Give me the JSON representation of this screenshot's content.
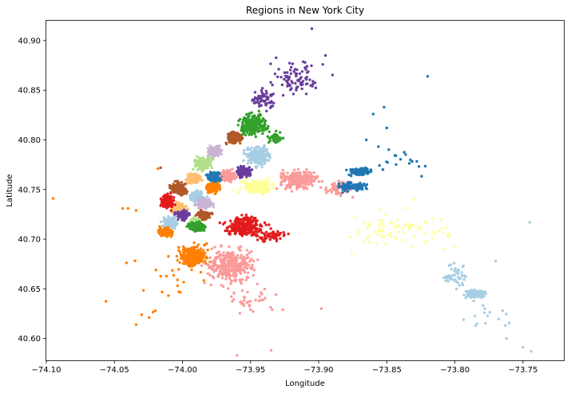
{
  "chart_data": {
    "type": "scatter",
    "title": "Regions in New York City",
    "xlabel": "Longitude",
    "ylabel": "Latitude",
    "xlim": [
      -74.1,
      -73.72
    ],
    "ylim": [
      40.578,
      40.92
    ],
    "xticks": [
      -74.1,
      -74.05,
      -74.0,
      -73.95,
      -73.9,
      -73.85,
      -73.8,
      -73.75
    ],
    "xtick_labels": [
      "−74.10",
      "−74.05",
      "−74.00",
      "−73.95",
      "−73.90",
      "−73.85",
      "−73.80",
      "−73.75"
    ],
    "yticks": [
      40.6,
      40.65,
      40.7,
      40.75,
      40.8,
      40.85,
      40.9
    ],
    "ytick_labels": [
      "40.60",
      "40.65",
      "40.70",
      "40.75",
      "40.80",
      "40.85",
      "40.90"
    ],
    "grid": false,
    "clusters": [
      {
        "color": "#6a3d9a",
        "center": [
          -73.915,
          40.86
        ],
        "spread": [
          0.022,
          0.022
        ],
        "n": 90
      },
      {
        "color": "#6a3d9a",
        "center": [
          -73.94,
          40.84
        ],
        "spread": [
          0.01,
          0.01
        ],
        "n": 60
      },
      {
        "color": "#33a02c",
        "center": [
          -73.948,
          40.815
        ],
        "spread": [
          0.012,
          0.012
        ],
        "n": 240
      },
      {
        "color": "#33a02c",
        "center": [
          -73.932,
          40.803
        ],
        "spread": [
          0.006,
          0.006
        ],
        "n": 40
      },
      {
        "color": "#b15928",
        "center": [
          -73.962,
          40.802
        ],
        "spread": [
          0.006,
          0.007
        ],
        "n": 120
      },
      {
        "color": "#cab2d6",
        "center": [
          -73.977,
          40.788
        ],
        "spread": [
          0.006,
          0.006
        ],
        "n": 140
      },
      {
        "color": "#a6cee3",
        "center": [
          -73.945,
          40.784
        ],
        "spread": [
          0.01,
          0.01
        ],
        "n": 220
      },
      {
        "color": "#b2df8a",
        "center": [
          -73.985,
          40.776
        ],
        "spread": [
          0.008,
          0.007
        ],
        "n": 160
      },
      {
        "color": "#6a3d9a",
        "center": [
          -73.955,
          40.768
        ],
        "spread": [
          0.006,
          0.006
        ],
        "n": 130
      },
      {
        "color": "#1f78b4",
        "center": [
          -73.976,
          40.762
        ],
        "spread": [
          0.006,
          0.006
        ],
        "n": 140
      },
      {
        "color": "#fdbf6f",
        "center": [
          -73.992,
          40.761
        ],
        "spread": [
          0.006,
          0.006
        ],
        "n": 140
      },
      {
        "color": "#fb9a99",
        "center": [
          -73.966,
          40.764
        ],
        "spread": [
          0.006,
          0.006
        ],
        "n": 130
      },
      {
        "color": "#b15928",
        "center": [
          -74.003,
          40.751
        ],
        "spread": [
          0.006,
          0.007
        ],
        "n": 150
      },
      {
        "color": "#ff7f00",
        "center": [
          -73.977,
          40.752
        ],
        "spread": [
          0.006,
          0.006
        ],
        "n": 120
      },
      {
        "color": "#a6cee3",
        "center": [
          -73.989,
          40.743
        ],
        "spread": [
          0.006,
          0.006
        ],
        "n": 130
      },
      {
        "color": "#cab2d6",
        "center": [
          -73.984,
          40.736
        ],
        "spread": [
          0.006,
          0.006
        ],
        "n": 130
      },
      {
        "color": "#fdbf6f",
        "center": [
          -74.003,
          40.732
        ],
        "spread": [
          0.006,
          0.006
        ],
        "n": 120
      },
      {
        "color": "#e31a1c",
        "center": [
          -74.011,
          40.738
        ],
        "spread": [
          0.005,
          0.008
        ],
        "n": 160
      },
      {
        "color": "#6a3d9a",
        "center": [
          -74.0,
          40.724
        ],
        "spread": [
          0.005,
          0.005
        ],
        "n": 110
      },
      {
        "color": "#b15928",
        "center": [
          -73.984,
          40.724
        ],
        "spread": [
          0.006,
          0.005
        ],
        "n": 120
      },
      {
        "color": "#b2df8a",
        "center": [
          -73.991,
          40.717
        ],
        "spread": [
          0.005,
          0.005
        ],
        "n": 100
      },
      {
        "color": "#33a02c",
        "center": [
          -73.99,
          40.713
        ],
        "spread": [
          0.007,
          0.005
        ],
        "n": 100
      },
      {
        "color": "#a6cee3",
        "center": [
          -74.009,
          40.717
        ],
        "spread": [
          0.006,
          0.006
        ],
        "n": 120
      },
      {
        "color": "#ff7f00",
        "center": [
          -74.013,
          40.707
        ],
        "spread": [
          0.006,
          0.005
        ],
        "n": 150
      },
      {
        "color": "#ff7f00",
        "center": [
          -73.992,
          40.683
        ],
        "spread": [
          0.01,
          0.012
        ],
        "n": 220
      },
      {
        "color": "#ff7f00",
        "center": [
          -74.02,
          40.66
        ],
        "spread": [
          0.04,
          0.04
        ],
        "n": 25
      },
      {
        "color": "#fb9a99",
        "center": [
          -73.965,
          40.674
        ],
        "spread": [
          0.018,
          0.018
        ],
        "n": 320
      },
      {
        "color": "#fb9a99",
        "center": [
          -73.95,
          40.64
        ],
        "spread": [
          0.02,
          0.02
        ],
        "n": 40
      },
      {
        "color": "#e31a1c",
        "center": [
          -73.955,
          40.713
        ],
        "spread": [
          0.014,
          0.01
        ],
        "n": 260
      },
      {
        "color": "#e31a1c",
        "center": [
          -73.935,
          40.703
        ],
        "spread": [
          0.012,
          0.006
        ],
        "n": 60
      },
      {
        "color": "#ffff99",
        "center": [
          -73.945,
          40.752
        ],
        "spread": [
          0.014,
          0.008
        ],
        "n": 180
      },
      {
        "color": "#ffff99",
        "center": [
          -73.84,
          40.71
        ],
        "spread": [
          0.04,
          0.02
        ],
        "n": 80
      },
      {
        "color": "#fb9a99",
        "center": [
          -73.915,
          40.76
        ],
        "spread": [
          0.014,
          0.01
        ],
        "n": 240
      },
      {
        "color": "#fb9a99",
        "center": [
          -73.885,
          40.752
        ],
        "spread": [
          0.012,
          0.008
        ],
        "n": 80
      },
      {
        "color": "#1f78b4",
        "center": [
          -73.87,
          40.768
        ],
        "spread": [
          0.009,
          0.004
        ],
        "n": 110
      },
      {
        "color": "#1f78b4",
        "center": [
          -73.875,
          40.753
        ],
        "spread": [
          0.012,
          0.005
        ],
        "n": 90
      },
      {
        "color": "#1f78b4",
        "center": [
          -73.84,
          40.78
        ],
        "spread": [
          0.03,
          0.02
        ],
        "n": 20
      },
      {
        "color": "#a6cee3",
        "center": [
          -73.785,
          40.645
        ],
        "spread": [
          0.008,
          0.004
        ],
        "n": 170
      },
      {
        "color": "#a6cee3",
        "center": [
          -73.8,
          40.662
        ],
        "spread": [
          0.01,
          0.012
        ],
        "n": 50
      },
      {
        "color": "#a6cee3",
        "center": [
          -73.775,
          40.625
        ],
        "spread": [
          0.02,
          0.02
        ],
        "n": 15
      }
    ],
    "outliers": [
      {
        "color": "#ff7f00",
        "points": [
          [
            -74.095,
            40.741
          ],
          [
            -74.044,
            40.731
          ],
          [
            -74.04,
            40.731
          ],
          [
            -74.034,
            40.729
          ],
          [
            -74.018,
            40.771
          ],
          [
            -74.03,
            40.624
          ],
          [
            -74.034,
            40.614
          ],
          [
            -74.02,
            40.628
          ]
        ]
      },
      {
        "color": "#b15928",
        "points": [
          [
            -74.016,
            40.772
          ]
        ]
      },
      {
        "color": "#6a3d9a",
        "points": [
          [
            -73.905,
            40.912
          ],
          [
            -73.895,
            40.885
          ],
          [
            -73.897,
            40.876
          ],
          [
            -73.91,
            40.878
          ]
        ]
      },
      {
        "color": "#1f78b4",
        "points": [
          [
            -73.82,
            40.864
          ],
          [
            -73.852,
            40.833
          ],
          [
            -73.85,
            40.812
          ],
          [
            -73.86,
            40.826
          ],
          [
            -73.865,
            40.8
          ]
        ]
      },
      {
        "color": "#a6cee3",
        "points": [
          [
            -73.745,
            40.717
          ],
          [
            -73.77,
            40.678
          ],
          [
            -73.765,
            40.628
          ],
          [
            -73.75,
            40.591
          ],
          [
            -73.744,
            40.587
          ],
          [
            -73.762,
            40.6
          ]
        ]
      },
      {
        "color": "#fb9a99",
        "points": [
          [
            -73.96,
            40.583
          ],
          [
            -73.935,
            40.588
          ],
          [
            -73.898,
            40.63
          ]
        ]
      },
      {
        "color": "#ffff99",
        "points": [
          [
            -73.808,
            40.69
          ],
          [
            -73.8,
            40.692
          ],
          [
            -73.83,
            40.74
          ]
        ]
      }
    ]
  }
}
